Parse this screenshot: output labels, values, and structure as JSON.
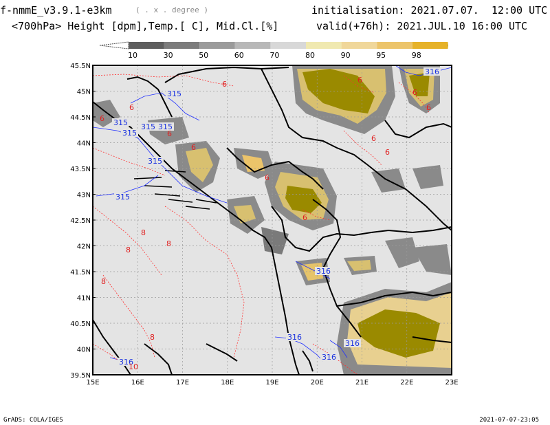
{
  "header": {
    "model": "f-nmmE_v3.9.1-e3km",
    "units_note": "( . x . degree )",
    "init_label": "initialisation:",
    "init_value": "2021.07.07.  12:00 UTC",
    "subtitle": "<700hPa> Height [dpm],Temp.[ C], Mid.Cl.[%]",
    "valid_label": "valid(+76h):",
    "valid_value": "2021.JUL.10 16:00 UTC"
  },
  "colorbar": {
    "labels": [
      "10",
      "30",
      "50",
      "60",
      "70",
      "80",
      "90",
      "95",
      "98"
    ],
    "colors": [
      "#5e5e5e",
      "#7c7c7c",
      "#9b9b9b",
      "#b8b8b8",
      "#d8d8d8",
      "#f0e9b0",
      "#f0d79a",
      "#ecc46a",
      "#e6b228",
      "#9a8a00"
    ]
  },
  "map": {
    "lat_labels": [
      "45.5N",
      "45N",
      "44.5N",
      "44N",
      "43.5N",
      "43N",
      "42.5N",
      "42N",
      "41.5N",
      "41N",
      "40.5N",
      "40N",
      "39.5N"
    ],
    "lon_labels": [
      "15E",
      "16E",
      "17E",
      "18E",
      "19E",
      "20E",
      "21E",
      "22E",
      "23E"
    ],
    "height_labels": [
      "315",
      "315",
      "315",
      "315",
      "315",
      "315",
      "315",
      "316",
      "316",
      "316",
      "316",
      "316",
      "316"
    ],
    "temp_labels": [
      "6",
      "6",
      "6",
      "6",
      "6",
      "6",
      "6",
      "6",
      "6",
      "6",
      "6",
      "6",
      "8",
      "8",
      "8",
      "8",
      "8",
      "10"
    ],
    "land_color": "#e4e4e4",
    "cloud_colors": {
      "heavy": "#9a8a00",
      "mid": "#e6c46a",
      "light": "#f0e0a8",
      "grey": "#7a7a7a"
    }
  },
  "footer": {
    "credit": "GrADS: COLA/IGES",
    "stamp": "2021-07-07-23:05"
  }
}
